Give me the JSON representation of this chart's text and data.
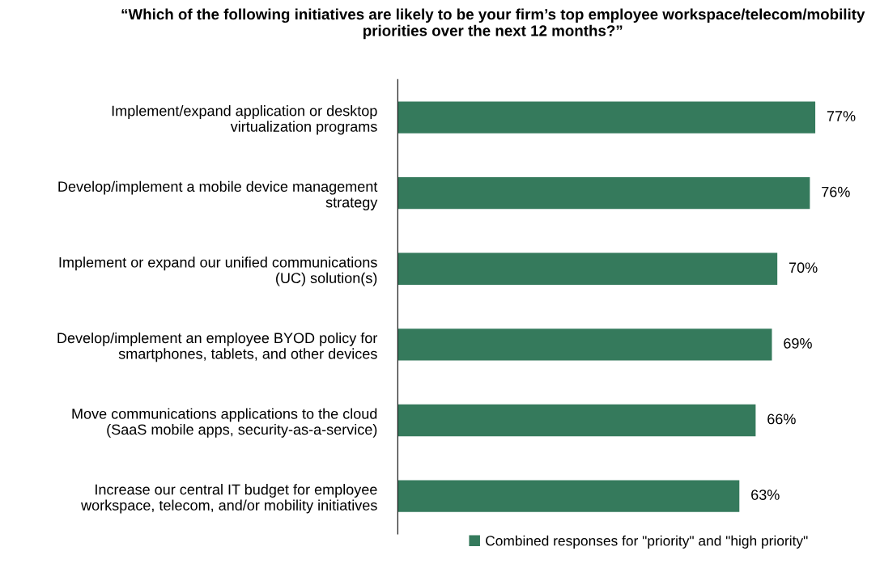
{
  "chart_data": {
    "type": "bar",
    "orientation": "horizontal",
    "title": "“Which of the following initiatives are likely to be your firm’s top employee workspace/telecom/mobility priorities over the next 12 months?”",
    "categories": [
      "Implement/expand application or desktop\nvirtualization programs",
      "Develop/implement a mobile device management\nstrategy",
      "Implement or expand our unified communications\n(UC) solution(s)",
      "Develop/implement an employee BYOD policy for\nsmartphones, tablets, and other devices",
      "Move communications applications to the cloud\n(SaaS mobile apps, security-as-a-service)",
      "Increase our central IT budget for employee\nworkspace, telecom, and/or mobility initiatives"
    ],
    "series": [
      {
        "name": "Combined responses for \"priority\" and \"high priority\"",
        "color": "#357a5c",
        "values": [
          77,
          76,
          70,
          69,
          66,
          63
        ],
        "value_labels": [
          "77%",
          "76%",
          "70%",
          "69%",
          "66%",
          "63%"
        ]
      }
    ],
    "legend": "bottom",
    "grid": false
  }
}
